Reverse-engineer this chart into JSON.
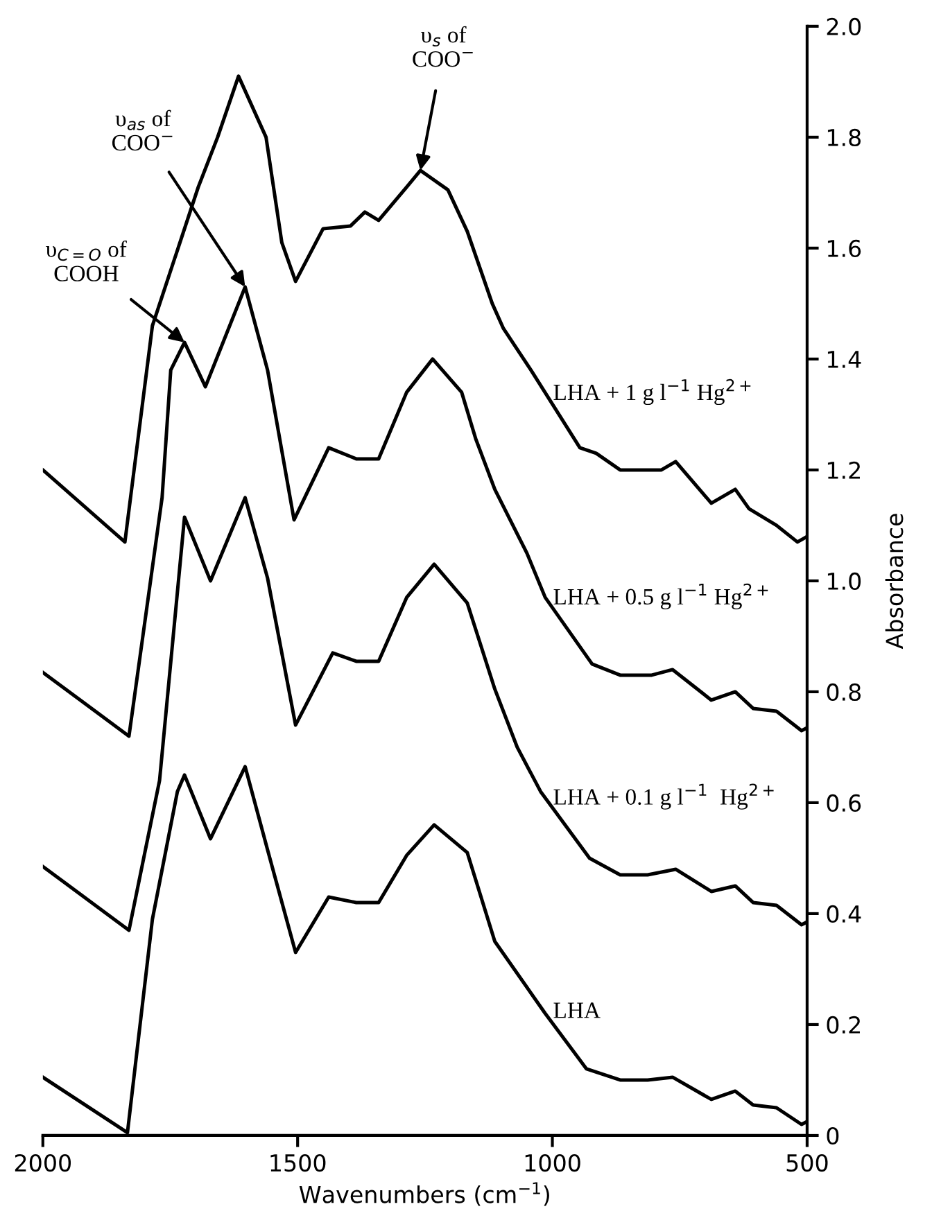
{
  "chart_data": {
    "type": "line",
    "xlabel": "Wavenumbers (cm$^{−1}$)",
    "ylabel": "Absorbance",
    "xlim": [
      2000,
      500
    ],
    "xticks": [
      2000,
      1500,
      1000,
      500
    ],
    "ylim": [
      0,
      2.0
    ],
    "yticks": [
      0,
      0.2,
      0.4,
      0.6,
      0.8,
      {
        "value": 1.0,
        "label": "1.0"
      },
      1.2,
      1.4,
      1.6,
      1.8,
      {
        "value": 2.0,
        "label": "2.0"
      }
    ],
    "grid": false,
    "legend": false,
    "marker": "none",
    "line_style": "solid",
    "series": [
      {
        "name": "LHA + 1 g l$^{−1}$ Hg$^{2+}$",
        "color": "#000000",
        "x": [
          2000,
          1839,
          1785,
          1695,
          1657,
          1616,
          1562,
          1531,
          1504,
          1450,
          1396,
          1368,
          1341,
          1286,
          1259,
          1205,
          1167,
          1118,
          1096,
          1042,
          946,
          914,
          867,
          824,
          786,
          758,
          688,
          641,
          614,
          560,
          519,
          500
        ],
        "values": [
          1.2,
          1.07,
          1.46,
          1.71,
          1.8,
          1.91,
          1.8,
          1.61,
          1.54,
          1.635,
          1.64,
          1.665,
          1.65,
          1.71,
          1.74,
          1.705,
          1.63,
          1.5,
          1.455,
          1.38,
          1.24,
          1.23,
          1.2,
          1.2,
          1.2,
          1.215,
          1.14,
          1.165,
          1.13,
          1.1,
          1.07,
          1.08
        ]
      },
      {
        "name": "LHA + 0.5 g l$^{−1}$ Hg$^{2+}$",
        "color": "#000000",
        "x": [
          2000,
          1831,
          1766,
          1749,
          1722,
          1681,
          1603,
          1559,
          1507,
          1439,
          1385,
          1341,
          1286,
          1235,
          1178,
          1150,
          1113,
          1050,
          1014,
          922,
          867,
          805,
          764,
          688,
          641,
          606,
          560,
          511,
          500
        ],
        "values": [
          0.835,
          0.72,
          1.15,
          1.38,
          1.43,
          1.35,
          1.53,
          1.38,
          1.11,
          1.24,
          1.22,
          1.22,
          1.34,
          1.4,
          1.34,
          1.255,
          1.165,
          1.05,
          0.97,
          0.85,
          0.83,
          0.83,
          0.84,
          0.785,
          0.8,
          0.77,
          0.765,
          0.73,
          0.735
        ]
      },
      {
        "name": "LHA + 0.1 g l$^{−1}$  Hg$^{2+}$",
        "color": "#000000",
        "x": [
          2000,
          1831,
          1771,
          1722,
          1671,
          1603,
          1559,
          1504,
          1431,
          1385,
          1341,
          1286,
          1232,
          1167,
          1113,
          1069,
          1023,
          927,
          867,
          813,
          758,
          688,
          641,
          606,
          560,
          511,
          500
        ],
        "values": [
          0.485,
          0.37,
          0.64,
          1.115,
          1.0,
          1.15,
          1.005,
          0.74,
          0.87,
          0.855,
          0.855,
          0.97,
          1.03,
          0.96,
          0.805,
          0.7,
          0.62,
          0.5,
          0.47,
          0.47,
          0.48,
          0.44,
          0.45,
          0.42,
          0.415,
          0.38,
          0.385
        ]
      },
      {
        "name": "LHA",
        "color": "#000000",
        "x": [
          2000,
          1834,
          1785,
          1736,
          1722,
          1671,
          1603,
          1559,
          1504,
          1439,
          1385,
          1341,
          1286,
          1232,
          1167,
          1113,
          1014,
          933,
          867,
          813,
          764,
          688,
          641,
          606,
          560,
          511,
          500
        ],
        "values": [
          0.105,
          0.005,
          0.39,
          0.62,
          0.65,
          0.535,
          0.665,
          0.515,
          0.33,
          0.43,
          0.42,
          0.42,
          0.505,
          0.56,
          0.51,
          0.35,
          0.22,
          0.12,
          0.1,
          0.1,
          0.105,
          0.065,
          0.08,
          0.055,
          0.05,
          0.02,
          0.025
        ]
      }
    ],
    "annotations": [
      {
        "text": "υ$_{s}$ of\nCOO$^{−}$",
        "x": 1259,
        "y": 1.74
      },
      {
        "text": "υ$_{as}$ of\nCOO$^{−}$",
        "x": 1603,
        "y": 1.53
      },
      {
        "text": "υ$_{C=O}$ of\nCOOH",
        "x": 1722,
        "y": 1.43
      }
    ]
  }
}
